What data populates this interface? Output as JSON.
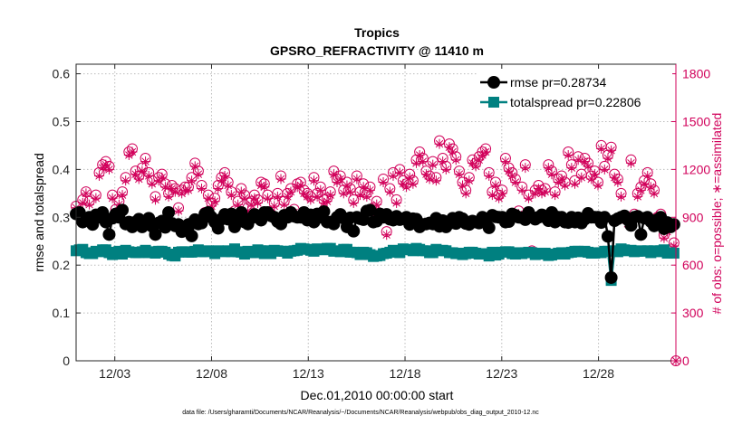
{
  "chart_data": {
    "type": "line",
    "title": "Tropics",
    "subtitle": "GPSRO_REFRACTIVITY @ 11410 m",
    "xlabel": "Dec.01,2010 00:00:00 start",
    "ylabel_left": "rmse and totalspread",
    "ylabel_right": "# of obs: o=possible; ∗=assimilated",
    "footnote": "data file: /Users/gharamti/Documents/NCAR/Reanalysis/~/Documents/NCAR/Reanalysis/webpub/obs_diag_output_2010-12.nc",
    "xlim": [
      1.0,
      32.0
    ],
    "ylim_left": [
      0,
      0.62
    ],
    "ylim_right": [
      0,
      1860
    ],
    "x_ticks": [
      3,
      8,
      13,
      18,
      23,
      28
    ],
    "x_tick_labels": [
      "12/03",
      "12/08",
      "12/13",
      "12/18",
      "12/23",
      "12/28"
    ],
    "y_ticks_left": [
      0,
      0.1,
      0.2,
      0.3,
      0.4,
      0.5,
      0.6
    ],
    "y_tick_labels_left": [
      "0",
      "0.1",
      "0.2",
      "0.3",
      "0.4",
      "0.5",
      "0.6"
    ],
    "y_ticks_right": [
      0,
      300,
      600,
      900,
      1200,
      1500,
      1800
    ],
    "y_tick_labels_right": [
      "0",
      "300",
      "600",
      "900",
      "1200",
      "1500",
      "1800"
    ],
    "colors": {
      "rmse": "#000000",
      "spread": "#008080",
      "obs": "#d1005a"
    },
    "legend": {
      "position": "top-right",
      "entries": [
        {
          "name": "rmse pr=0.28734",
          "marker": "circle",
          "color": "#000000"
        },
        {
          "name": "totalspread pr=0.22806",
          "marker": "square",
          "color": "#008080"
        }
      ]
    },
    "series": [
      {
        "name": "rmse",
        "values": [
          0.307,
          0.31,
          0.29,
          0.295,
          0.3,
          0.285,
          0.305,
          0.3,
          0.31,
          0.29,
          0.264,
          0.298,
          0.307,
          0.3,
          0.315,
          0.286,
          0.29,
          0.28,
          0.29,
          0.296,
          0.28,
          0.29,
          0.298,
          0.281,
          0.264,
          0.288,
          0.292,
          0.279,
          0.31,
          0.287,
          0.282,
          0.285,
          0.27,
          0.278,
          0.285,
          0.261,
          0.295,
          0.286,
          0.288,
          0.307,
          0.31,
          0.3,
          0.29,
          0.277,
          0.296,
          0.306,
          0.296,
          0.307,
          0.28,
          0.3,
          0.31,
          0.29,
          0.286,
          0.298,
          0.306,
          0.3,
          0.294,
          0.31,
          0.31,
          0.303,
          0.3,
          0.291,
          0.286,
          0.304,
          0.3,
          0.31,
          0.302,
          0.3,
          0.3,
          0.31,
          0.294,
          0.305,
          0.29,
          0.307,
          0.3,
          0.312,
          0.29,
          0.29,
          0.286,
          0.3,
          0.306,
          0.298,
          0.28,
          0.299,
          0.271,
          0.3,
          0.297,
          0.295,
          0.313,
          0.315,
          0.29,
          0.292,
          0.307,
          0.3,
          0.306,
          0.296,
          0.294,
          0.302,
          0.295,
          0.297,
          0.3,
          0.285,
          0.297,
          0.296,
          0.28,
          0.285,
          0.286,
          0.288,
          0.286,
          0.298,
          0.281,
          0.293,
          0.28,
          0.287,
          0.298,
          0.287,
          0.3,
          0.297,
          0.287,
          0.285,
          0.292,
          0.29,
          0.288,
          0.3,
          0.294,
          0.278,
          0.304,
          0.301,
          0.3,
          0.3,
          0.29,
          0.291,
          0.307,
          0.304,
          0.3,
          0.299,
          0.295,
          0.31,
          0.3,
          0.296,
          0.3,
          0.305,
          0.3,
          0.293,
          0.31,
          0.29,
          0.3,
          0.3,
          0.29,
          0.289,
          0.3,
          0.29,
          0.299,
          0.288,
          0.296,
          0.308,
          0.3,
          0.3,
          0.3,
          0.289,
          0.3,
          0.26,
          0.174,
          0.293,
          0.297,
          0.3,
          0.303,
          0.295,
          0.283,
          0.3,
          0.302,
          0.264,
          0.298,
          0.3,
          0.291,
          0.282,
          0.295,
          0.3,
          0.276,
          0.289,
          0.28,
          0.285
        ]
      },
      {
        "name": "totalspread",
        "values": [
          0.23,
          0.232,
          0.233,
          0.226,
          0.224,
          0.224,
          0.229,
          0.228,
          0.232,
          0.232,
          0.226,
          0.222,
          0.227,
          0.229,
          0.223,
          0.231,
          0.228,
          0.227,
          0.226,
          0.226,
          0.228,
          0.231,
          0.226,
          0.228,
          0.225,
          0.229,
          0.229,
          0.227,
          0.223,
          0.22,
          0.219,
          0.227,
          0.228,
          0.228,
          0.227,
          0.227,
          0.229,
          0.232,
          0.228,
          0.228,
          0.23,
          0.229,
          0.224,
          0.23,
          0.229,
          0.228,
          0.23,
          0.228,
          0.234,
          0.228,
          0.227,
          0.223,
          0.229,
          0.226,
          0.226,
          0.232,
          0.23,
          0.224,
          0.23,
          0.224,
          0.231,
          0.23,
          0.229,
          0.229,
          0.225,
          0.229,
          0.23,
          0.231,
          0.235,
          0.234,
          0.233,
          0.231,
          0.229,
          0.234,
          0.233,
          0.232,
          0.235,
          0.235,
          0.229,
          0.23,
          0.228,
          0.233,
          0.233,
          0.227,
          0.227,
          0.226,
          0.222,
          0.227,
          0.226,
          0.222,
          0.218,
          0.219,
          0.22,
          0.224,
          0.225,
          0.227,
          0.231,
          0.23,
          0.226,
          0.234,
          0.233,
          0.232,
          0.23,
          0.235,
          0.233,
          0.23,
          0.23,
          0.226,
          0.226,
          0.233,
          0.23,
          0.231,
          0.23,
          0.226,
          0.226,
          0.224,
          0.225,
          0.222,
          0.224,
          0.227,
          0.227,
          0.225,
          0.223,
          0.224,
          0.224,
          0.219,
          0.227,
          0.221,
          0.223,
          0.227,
          0.228,
          0.228,
          0.224,
          0.223,
          0.226,
          0.224,
          0.226,
          0.227,
          0.226,
          0.222,
          0.223,
          0.225,
          0.225,
          0.22,
          0.221,
          0.223,
          0.225,
          0.226,
          0.223,
          0.226,
          0.227,
          0.229,
          0.229,
          0.228,
          0.229,
          0.227,
          0.225,
          0.225,
          0.226,
          0.226,
          0.229,
          0.229,
          0.168,
          0.23,
          0.228,
          0.234,
          0.232,
          0.23,
          0.231,
          0.228,
          0.229,
          0.23,
          0.229,
          0.23,
          0.226,
          0.23,
          0.228,
          0.23,
          0.232,
          0.225,
          0.226,
          0.225
        ]
      },
      {
        "name": "obs_possible",
        "values": [
          970,
          920,
          1010,
          1060,
          1000,
          880,
          1040,
          1180,
          1230,
          1250,
          1220,
          1040,
          950,
          1000,
          1060,
          1150,
          1310,
          1330,
          1190,
          1160,
          1210,
          1270,
          1180,
          1130,
          1030,
          1150,
          1170,
          1110,
          1050,
          1100,
          1080,
          960,
          1070,
          1090,
          1090,
          1150,
          1240,
          1190,
          1100,
          930,
          1040,
          990,
          1020,
          1100,
          1150,
          1180,
          1120,
          1060,
          940,
          1000,
          1080,
          1040,
          960,
          1000,
          1040,
          1010,
          1120,
          1110,
          1040,
          920,
          990,
          1050,
          1160,
          1000,
          1050,
          1080,
          950,
          1110,
          1120,
          1070,
          1050,
          1030,
          1150,
          1050,
          1090,
          1010,
          1020,
          1060,
          1190,
          1140,
          1160,
          1070,
          1120,
          1080,
          1010,
          1160,
          1060,
          1110,
          1050,
          1090,
          960,
          1000,
          910,
          1140,
          810,
          1080,
          1180,
          1010,
          1200,
          1130,
          1110,
          1170,
          1130,
          1260,
          1310,
          1270,
          1190,
          1160,
          1250,
          1150,
          1380,
          1270,
          1220,
          1360,
          1330,
          1280,
          1190,
          1120,
          1070,
          1150,
          1260,
          1240,
          1280,
          1310,
          1330,
          1180,
          1060,
          1120,
          1040,
          1070,
          1270,
          1210,
          1180,
          1140,
          940,
          1090,
          1230,
          1040,
          690,
          1070,
          1100,
          1070,
          1080,
          1230,
          1190,
          1060,
          1140,
          1160,
          1120,
          1310,
          1230,
          1130,
          1280,
          1170,
          1270,
          1240,
          1160,
          1190,
          1120,
          1350,
          1220,
          1290,
          1340,
          1170,
          1140,
          1050,
          910,
          880,
          1260,
          920,
          1050,
          1090,
          1130,
          1180,
          1110,
          1070,
          900,
          920,
          790,
          830,
          700,
          740
        ]
      },
      {
        "name": "obs_assimilated",
        "values": [
          960,
          900,
          990,
          1050,
          980,
          860,
          1020,
          1160,
          1210,
          1230,
          1200,
          1020,
          930,
          980,
          1040,
          1130,
          1290,
          1310,
          1170,
          1140,
          1190,
          1250,
          1160,
          1110,
          1010,
          1130,
          1150,
          1090,
          1030,
          1080,
          1060,
          940,
          1050,
          1070,
          1070,
          1130,
          1220,
          1170,
          1080,
          910,
          1020,
          970,
          1000,
          1080,
          1130,
          1160,
          1100,
          1040,
          920,
          980,
          1060,
          1020,
          940,
          980,
          1020,
          990,
          1100,
          1090,
          1020,
          900,
          970,
          1030,
          1140,
          980,
          1030,
          1060,
          930,
          1090,
          1100,
          1050,
          1030,
          1010,
          1130,
          1030,
          1070,
          990,
          1000,
          1040,
          1170,
          1120,
          1140,
          1050,
          1100,
          1060,
          990,
          1140,
          1040,
          1090,
          1030,
          1070,
          940,
          980,
          890,
          1120,
          790,
          1060,
          1160,
          990,
          1180,
          1110,
          1090,
          1150,
          1110,
          1240,
          1290,
          1250,
          1170,
          1140,
          1230,
          1130,
          1360,
          1250,
          1200,
          1340,
          1310,
          1260,
          1170,
          1100,
          1050,
          1130,
          1240,
          1220,
          1260,
          1290,
          1310,
          1160,
          1040,
          1100,
          1020,
          1050,
          1250,
          1190,
          1160,
          1120,
          920,
          1070,
          1210,
          1020,
          670,
          1050,
          1080,
          1050,
          1060,
          1210,
          1170,
          1040,
          1120,
          1140,
          1100,
          1290,
          1210,
          1110,
          1260,
          1150,
          1250,
          1220,
          1140,
          1170,
          1100,
          1330,
          1200,
          1270,
          1320,
          1150,
          1120,
          1030,
          890,
          860,
          1240,
          900,
          1030,
          1070,
          1110,
          1160,
          1090,
          1050,
          880,
          900,
          770,
          810,
          680,
          720
        ]
      }
    ],
    "extra_obs_point": {
      "x": 32.0,
      "possible": 0,
      "assimilated": 0
    }
  }
}
